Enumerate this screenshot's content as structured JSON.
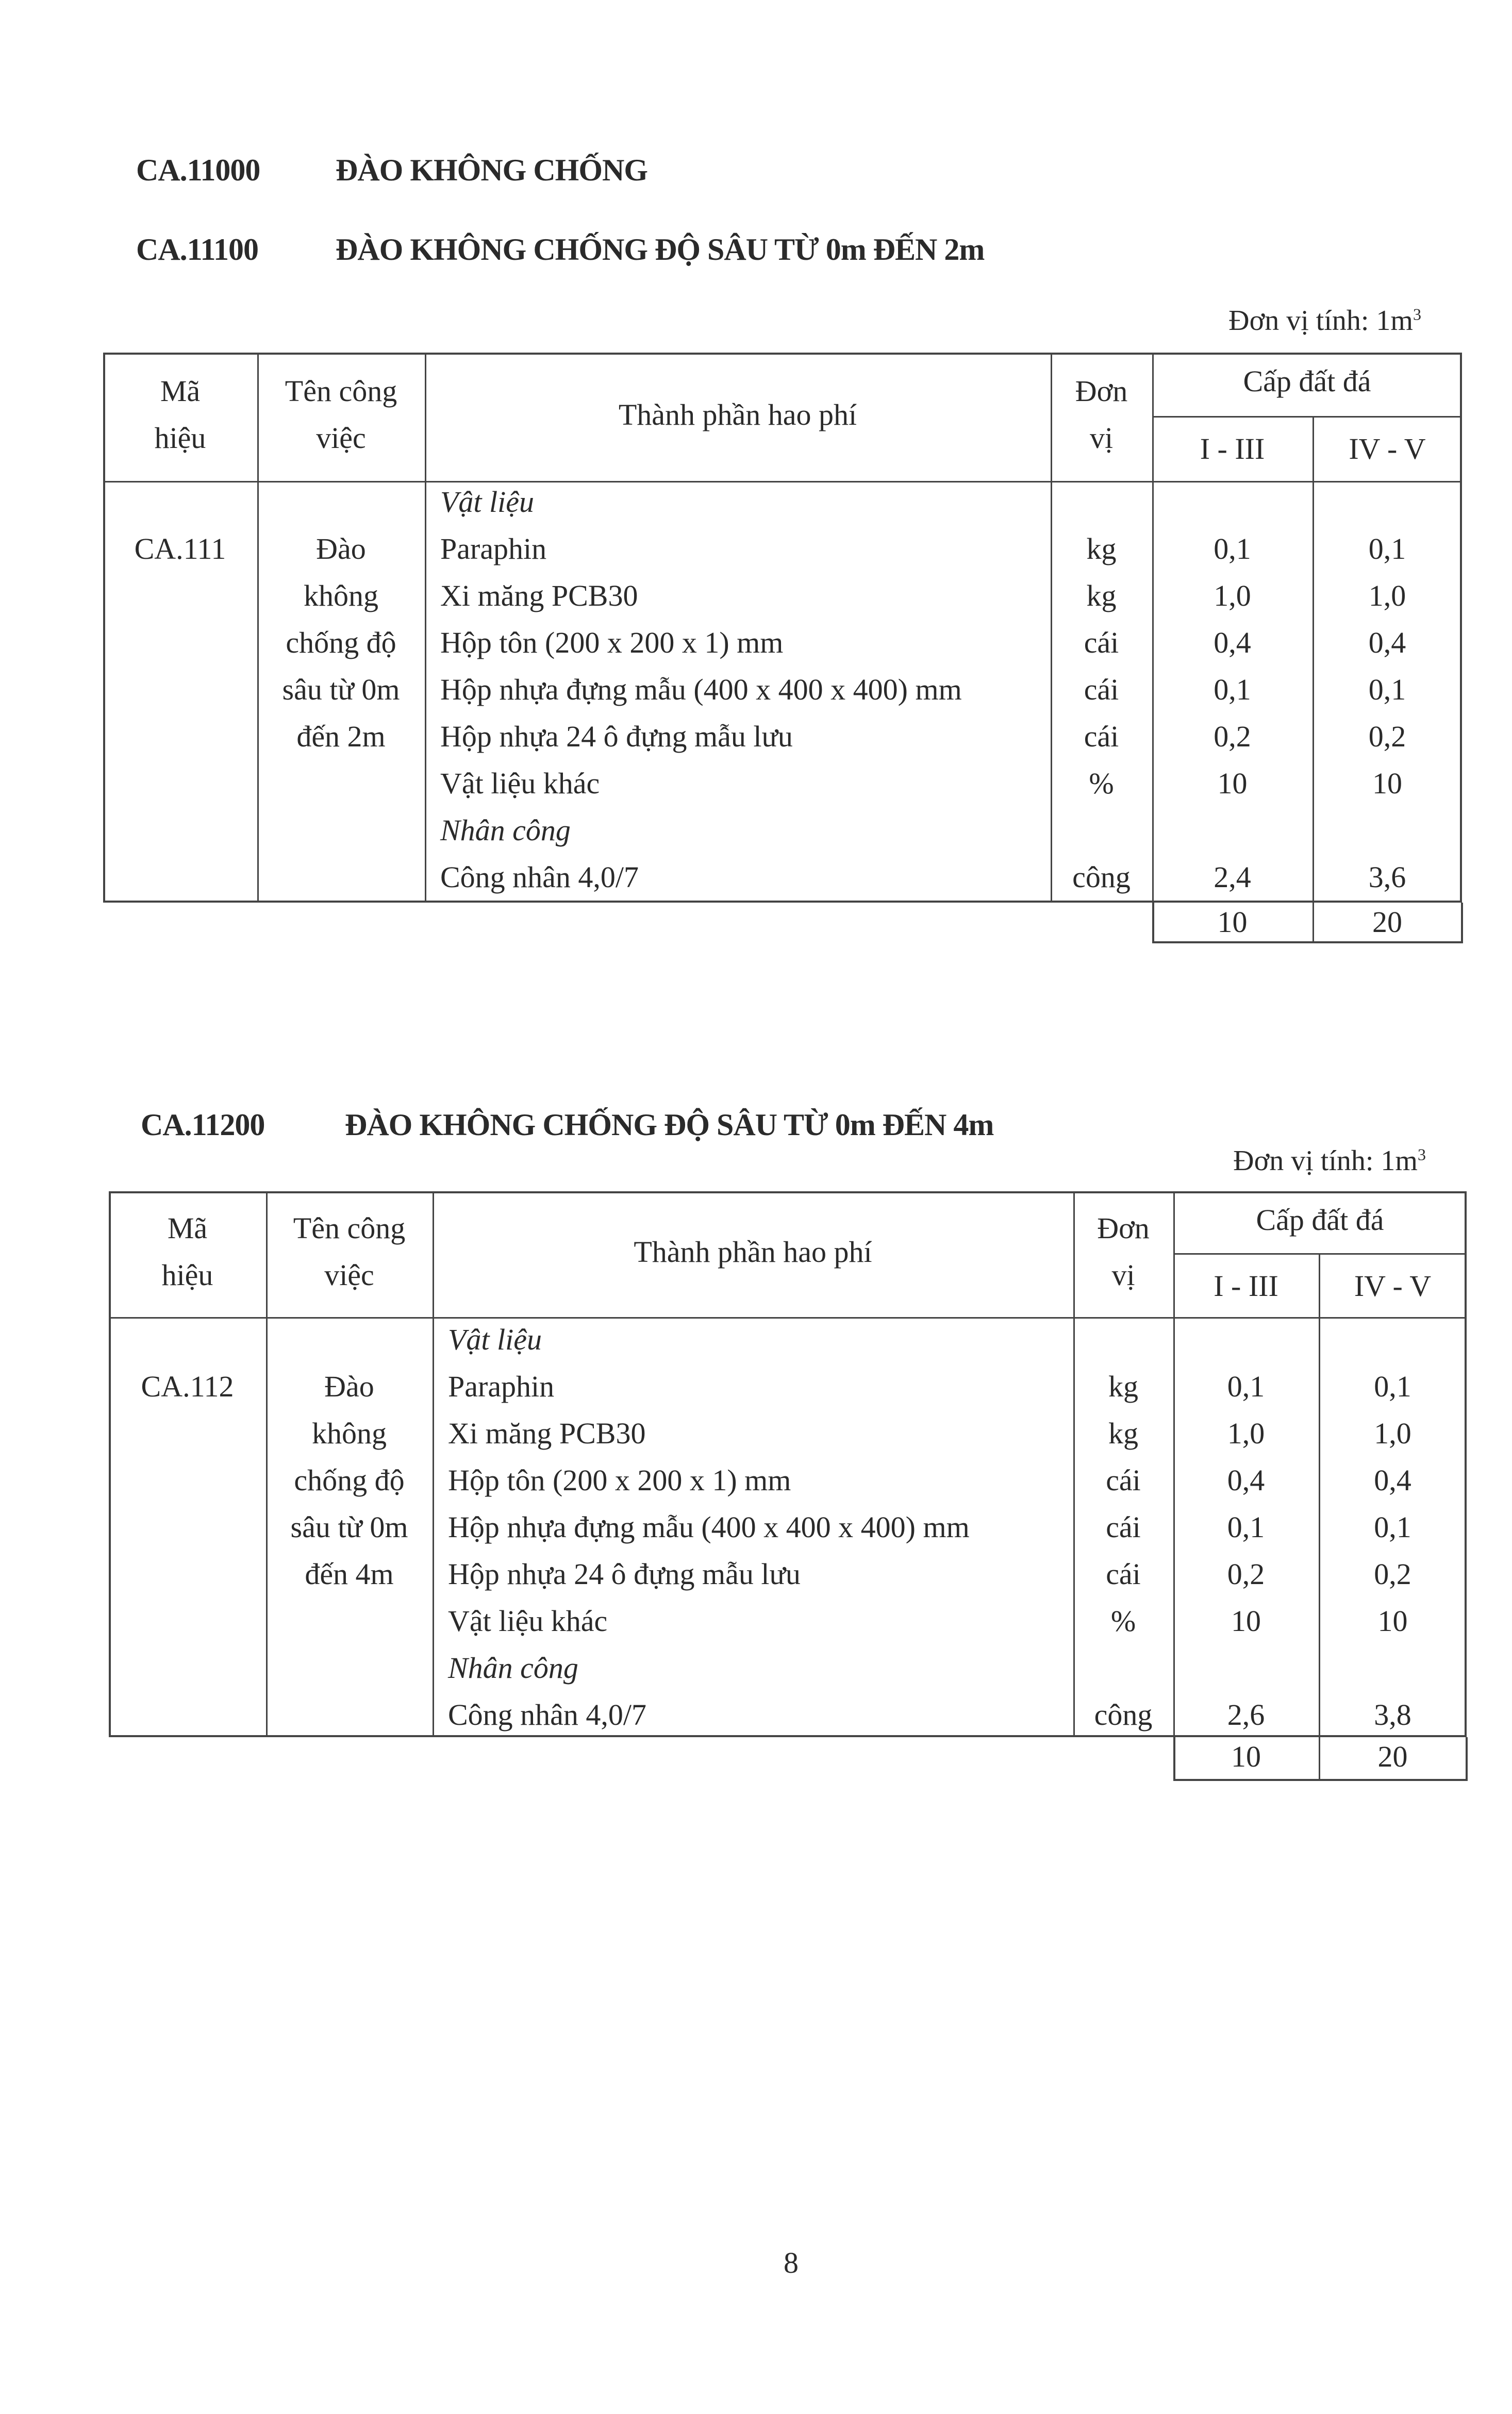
{
  "heading": {
    "code": "CA.11000",
    "title": "ĐÀO KHÔNG CHỐNG"
  },
  "sections": [
    {
      "code": "CA.11100",
      "title": "ĐÀO KHÔNG CHỐNG ĐỘ SÂU TỪ 0m ĐẾN 2m",
      "unit_label": "Đơn vị tính: 1m",
      "unit_sup": "3",
      "headers": {
        "ma_hieu": [
          "Mã",
          "hiệu"
        ],
        "ten_cong_viec": [
          "Tên công",
          "việc"
        ],
        "thanh_phan": "Thành phần hao phí",
        "don_vi": [
          "Đơn",
          "vị"
        ],
        "cap_dat_da": "Cấp đất đá",
        "cap_cols": [
          "I - III",
          "IV - V"
        ]
      },
      "code_cell": "CA.111",
      "work_name": [
        "Đào",
        "không",
        "chống độ",
        "sâu từ 0m",
        "đến 2m"
      ],
      "rows": [
        {
          "name": "Vật liệu",
          "italic": true,
          "unit": "",
          "v1": "",
          "v2": ""
        },
        {
          "name": "Paraphin",
          "unit": "kg",
          "v1": "0,1",
          "v2": "0,1"
        },
        {
          "name": "Xi măng PCB30",
          "unit": "kg",
          "v1": "1,0",
          "v2": "1,0"
        },
        {
          "name": "Hộp tôn (200 x 200 x 1) mm",
          "unit": "cái",
          "v1": "0,4",
          "v2": "0,4"
        },
        {
          "name": "Hộp nhựa đựng mẫu (400 x 400 x 400) mm",
          "unit": "cái",
          "v1": "0,1",
          "v2": "0,1"
        },
        {
          "name": "Hộp nhựa 24 ô đựng mẫu lưu",
          "unit": "cái",
          "v1": "0,2",
          "v2": "0,2"
        },
        {
          "name": "Vật liệu khác",
          "unit": "%",
          "v1": "10",
          "v2": "10"
        },
        {
          "name": "Nhân công",
          "italic": true,
          "unit": "",
          "v1": "",
          "v2": ""
        },
        {
          "name": "Công nhân 4,0/7",
          "unit": "công",
          "v1": "2,4",
          "v2": "3,6"
        }
      ],
      "footer": [
        "10",
        "20"
      ]
    },
    {
      "code": "CA.11200",
      "title": "ĐÀO KHÔNG CHỐNG ĐỘ SÂU TỪ 0m ĐẾN 4m",
      "unit_label": "Đơn vị tính: 1m",
      "unit_sup": "3",
      "headers": {
        "ma_hieu": [
          "Mã",
          "hiệu"
        ],
        "ten_cong_viec": [
          "Tên công",
          "việc"
        ],
        "thanh_phan": "Thành phần hao phí",
        "don_vi": [
          "Đơn",
          "vị"
        ],
        "cap_dat_da": "Cấp đất đá",
        "cap_cols": [
          "I - III",
          "IV - V"
        ]
      },
      "code_cell": "CA.112",
      "work_name": [
        "Đào",
        "không",
        "chống độ",
        "sâu từ 0m",
        "đến 4m"
      ],
      "rows": [
        {
          "name": "Vật liệu",
          "italic": true,
          "unit": "",
          "v1": "",
          "v2": ""
        },
        {
          "name": "Paraphin",
          "unit": "kg",
          "v1": "0,1",
          "v2": "0,1"
        },
        {
          "name": "Xi măng PCB30",
          "unit": "kg",
          "v1": "1,0",
          "v2": "1,0"
        },
        {
          "name": "Hộp tôn (200 x 200 x 1) mm",
          "unit": "cái",
          "v1": "0,4",
          "v2": "0,4"
        },
        {
          "name": "Hộp nhựa đựng mẫu (400 x 400 x 400) mm",
          "unit": "cái",
          "v1": "0,1",
          "v2": "0,1"
        },
        {
          "name": "Hộp nhựa 24 ô đựng mẫu lưu",
          "unit": "cái",
          "v1": "0,2",
          "v2": "0,2"
        },
        {
          "name": "Vật liệu khác",
          "unit": "%",
          "v1": "10",
          "v2": "10"
        },
        {
          "name": "Nhân công",
          "italic": true,
          "unit": "",
          "v1": "",
          "v2": ""
        },
        {
          "name": "Công nhân 4,0/7",
          "unit": "công",
          "v1": "2,6",
          "v2": "3,8"
        }
      ],
      "footer": [
        "10",
        "20"
      ]
    }
  ],
  "page_number": "8"
}
